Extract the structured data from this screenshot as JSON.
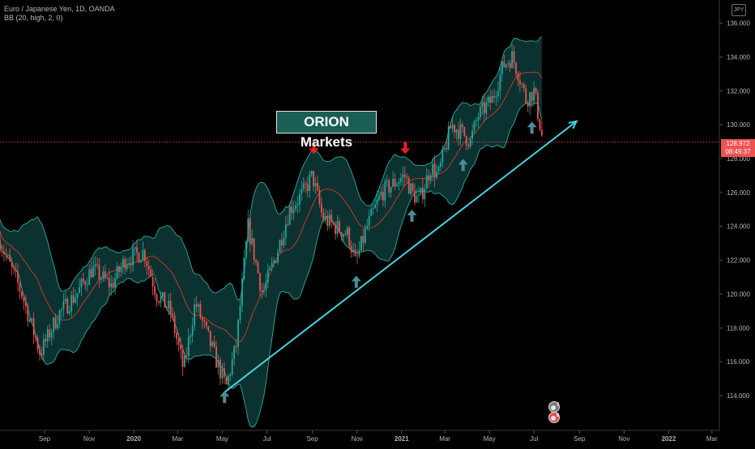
{
  "legend": {
    "symbol_line": "Euro / Japanese Yen, 1D, OANDA",
    "indicator_line": "BB (20, high, 2, 0)"
  },
  "currency_button": "JPY",
  "watermark_label": "ORION Markets",
  "current_price": {
    "value": "128.972",
    "countdown": "08:49:37",
    "level": 128.972
  },
  "event_badges": [
    "7",
    "8"
  ],
  "colors": {
    "background": "#000000",
    "up_candle": "#26a69a",
    "down_candle": "#ef5350",
    "band_fill": "#0d3b38",
    "band_line": "#2a9d90",
    "basis_line": "#c0392b",
    "trendline": "#45d3dc",
    "up_arrow": "#4c8c99",
    "down_arrow": "#e61f1f",
    "price_line": "#ef5350"
  },
  "chart_data": {
    "type": "candlestick",
    "title": "Euro / Japanese Yen, 1D, OANDA",
    "indicator": "BB (20, high, 2, 0)",
    "y_ticks": [
      114,
      116,
      118,
      120,
      122,
      124,
      126,
      128,
      130,
      132,
      134,
      136
    ],
    "y_tick_labels": [
      "114.000",
      "116.000",
      "118.000",
      "120.000",
      "122.000",
      "124.000",
      "126.000",
      "128.000",
      "130.000",
      "132.000",
      "134.000",
      "136.000"
    ],
    "ylim": [
      112.8,
      136.8
    ],
    "x_tick_labels": [
      "Sep",
      "Nov",
      "2020",
      "Mar",
      "May",
      "Jul",
      "Sep",
      "Nov",
      "2021",
      "Mar",
      "May",
      "Jul",
      "Sep",
      "Nov",
      "2022",
      "Mar"
    ],
    "x_ticks_month_index": [
      0,
      2,
      4,
      6,
      8,
      10,
      12,
      14,
      16,
      18,
      20,
      22,
      24,
      26,
      28,
      30
    ],
    "x_ticks_dates": [
      "2019-09",
      "2019-11",
      "2020-01",
      "2020-03",
      "2020-05",
      "2020-07",
      "2020-09",
      "2020-11",
      "2021-01",
      "2021-03",
      "2021-05",
      "2021-07",
      "2021-09",
      "2021-11",
      "2022-01",
      "2022-03"
    ],
    "price_path": {
      "description": "approximate closing levels",
      "points": [
        [
          "2019-07-01",
          123.2
        ],
        [
          "2019-08-01",
          120.0
        ],
        [
          "2019-08-26",
          116.5
        ],
        [
          "2019-09-20",
          118.8
        ],
        [
          "2019-10-15",
          120.0
        ],
        [
          "2019-11-05",
          121.5
        ],
        [
          "2019-12-01",
          120.5
        ],
        [
          "2019-12-20",
          122.0
        ],
        [
          "2020-01-15",
          122.5
        ],
        [
          "2020-02-01",
          120.0
        ],
        [
          "2020-02-20",
          119.0
        ],
        [
          "2020-03-09",
          115.5
        ],
        [
          "2020-03-25",
          119.5
        ],
        [
          "2020-04-15",
          117.0
        ],
        [
          "2020-05-06",
          114.5
        ],
        [
          "2020-05-20",
          117.0
        ],
        [
          "2020-06-05",
          124.0
        ],
        [
          "2020-06-25",
          120.0
        ],
        [
          "2020-07-15",
          122.5
        ],
        [
          "2020-08-01",
          125.0
        ],
        [
          "2020-08-20",
          126.0
        ],
        [
          "2020-09-01",
          127.0
        ],
        [
          "2020-09-15",
          124.5
        ],
        [
          "2020-10-01",
          124.0
        ],
        [
          "2020-10-20",
          123.5
        ],
        [
          "2020-10-30",
          121.8
        ],
        [
          "2020-11-15",
          124.0
        ],
        [
          "2020-12-05",
          126.0
        ],
        [
          "2021-01-05",
          127.0
        ],
        [
          "2021-01-15",
          126.0
        ],
        [
          "2021-01-25",
          125.5
        ],
        [
          "2021-02-10",
          127.5
        ],
        [
          "2021-02-20",
          127.0
        ],
        [
          "2021-03-10",
          130.0
        ],
        [
          "2021-03-25",
          129.5
        ],
        [
          "2021-04-05",
          129.0
        ],
        [
          "2021-04-15",
          130.5
        ],
        [
          "2021-05-05",
          131.5
        ],
        [
          "2021-05-20",
          133.5
        ],
        [
          "2021-06-01",
          134.0
        ],
        [
          "2021-06-10",
          133.0
        ],
        [
          "2021-06-20",
          131.5
        ],
        [
          "2021-07-01",
          132.0
        ],
        [
          "2021-07-13",
          129.0
        ]
      ]
    },
    "current_price": 128.972,
    "annotations": [
      {
        "type": "down-arrow",
        "date": "2020-09-03",
        "price": 128.6
      },
      {
        "type": "down-arrow",
        "date": "2021-01-06",
        "price": 128.6
      },
      {
        "type": "up-arrow",
        "date": "2020-05-04",
        "price": 113.9
      },
      {
        "type": "up-arrow",
        "date": "2020-10-31",
        "price": 120.7
      },
      {
        "type": "up-arrow",
        "date": "2021-01-15",
        "price": 124.6
      },
      {
        "type": "up-arrow",
        "date": "2021-03-26",
        "price": 127.6
      },
      {
        "type": "up-arrow",
        "date": "2021-06-28",
        "price": 129.8
      },
      {
        "type": "trendline",
        "from": [
          "2020-05-04",
          114.2
        ],
        "to": [
          "2021-08-28",
          130.2
        ]
      }
    ],
    "grid": false,
    "legend_position": "top-left"
  }
}
